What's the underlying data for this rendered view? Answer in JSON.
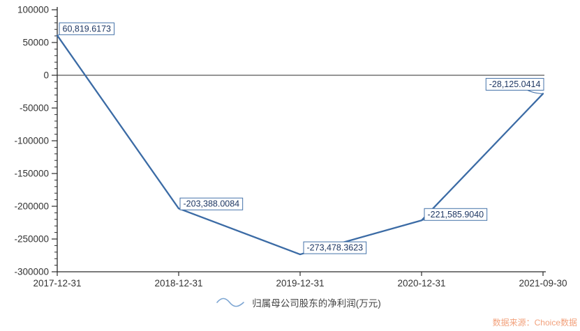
{
  "chart_data": {
    "type": "line",
    "title": "",
    "xlabel": "",
    "ylabel": "",
    "categories": [
      "2017-12-31",
      "2018-12-31",
      "2019-12-31",
      "2020-12-31",
      "2021-09-30"
    ],
    "series": [
      {
        "name": "归属母公司股东的净利润(万元)",
        "values": [
          60819.6173,
          -203388.0084,
          -273478.3623,
          -221585.904,
          -28125.0414
        ]
      }
    ],
    "point_labels": [
      "60,819.6173",
      "-203,388.0084",
      "-273,478.3623",
      "-221,585.9040",
      "-28,125.0414"
    ],
    "ylim": [
      -300000,
      100000
    ],
    "y_tick_labels": [
      "100000",
      "50000",
      "0",
      "-50000",
      "-100000",
      "-150000",
      "-200000",
      "-250000",
      "-300000"
    ],
    "y_minor_tick_step": 10000,
    "y_major_tick_step": 50000,
    "grid": false,
    "zero_line": true,
    "legend": {
      "position": "bottom"
    },
    "colors": {
      "line": "#3B6BA5",
      "label_border": "#4472A8",
      "label_text": "#1F3864",
      "label_bg": "#FFFFFF",
      "axis": "#2B2B2B",
      "tick_text": "#333333",
      "legend_icon": "#7CA5D2",
      "legend_text": "#444444"
    }
  },
  "source_note": {
    "text": "数据来源：Choice数据",
    "color": "#F2A17C"
  }
}
